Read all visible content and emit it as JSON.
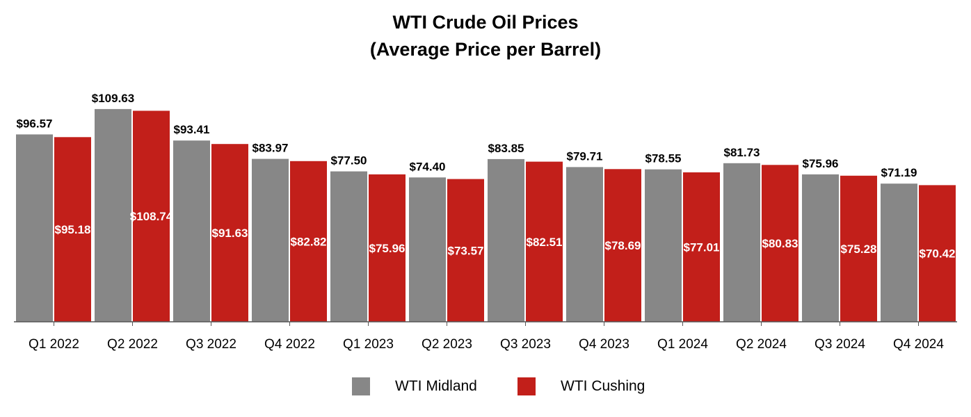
{
  "chart_data": {
    "type": "bar",
    "title": "WTI Crude Oil Prices",
    "subtitle": "(Average Price per Barrel)",
    "xlabel": "",
    "ylabel": "",
    "ylim": [
      0,
      115
    ],
    "grid": false,
    "legend_position": "bottom",
    "categories": [
      "Q1 2022",
      "Q2 2022",
      "Q3 2022",
      "Q4 2022",
      "Q1 2023",
      "Q2 2023",
      "Q3 2023",
      "Q4 2023",
      "Q1 2024",
      "Q2 2024",
      "Q3 2024",
      "Q4 2024"
    ],
    "series": [
      {
        "name": "WTI Midland",
        "color": "#878787",
        "values": [
          96.57,
          109.63,
          93.41,
          83.97,
          77.5,
          74.4,
          83.85,
          79.71,
          78.55,
          81.73,
          75.96,
          71.19
        ],
        "labels": [
          "$96.57",
          "$109.63",
          "$93.41",
          "$83.97",
          "$77.50",
          "$74.40",
          "$83.85",
          "$79.71",
          "$78.55",
          "$81.73",
          "$75.96",
          "$71.19"
        ]
      },
      {
        "name": "WTI Cushing",
        "color": "#c21f1a",
        "values": [
          95.18,
          108.74,
          91.63,
          82.82,
          75.96,
          73.57,
          82.51,
          78.69,
          77.01,
          80.83,
          75.28,
          70.42
        ],
        "labels": [
          "$95.18",
          "$108.74",
          "$91.63",
          "$82.82",
          "$75.96",
          "$73.57",
          "$82.51",
          "$78.69",
          "$77.01",
          "$80.83",
          "$75.28",
          "$70.42"
        ]
      }
    ]
  }
}
